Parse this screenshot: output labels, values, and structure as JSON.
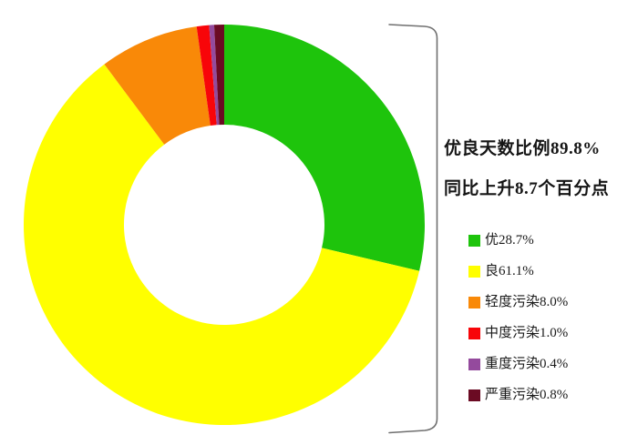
{
  "chart_data": {
    "type": "pie",
    "variant": "donut",
    "title_lines": [
      "优良天数比例89.8%",
      "同比上升8.7个百分点"
    ],
    "categories": [
      "优",
      "良",
      "轻度污染",
      "中度污染",
      "重度污染",
      "严重污染"
    ],
    "values": [
      28.7,
      61.1,
      8.0,
      1.0,
      0.4,
      0.8
    ],
    "slices": [
      {
        "label": "优",
        "value": 28.7,
        "legend": "优28.7%",
        "color": "#1ec40c"
      },
      {
        "label": "良",
        "value": 61.1,
        "legend": "良61.1%",
        "color": "#ffff00"
      },
      {
        "label": "轻度污染",
        "value": 8.0,
        "legend": "轻度污染8.0%",
        "color": "#f98908"
      },
      {
        "label": "中度污染",
        "value": 1.0,
        "legend": "中度污染1.0%",
        "color": "#f80509"
      },
      {
        "label": "重度污染",
        "value": 0.4,
        "legend": "重度污染0.4%",
        "color": "#944a9d"
      },
      {
        "label": "严重污染",
        "value": 0.8,
        "legend": "严重污染0.8%",
        "color": "#6b0b23"
      }
    ],
    "start_angle": "top",
    "direction": "clockwise",
    "inner_radius_ratio": 0.5,
    "legend_position": "right",
    "grid": false
  },
  "bracket": {
    "color": "#6f6f6f"
  }
}
